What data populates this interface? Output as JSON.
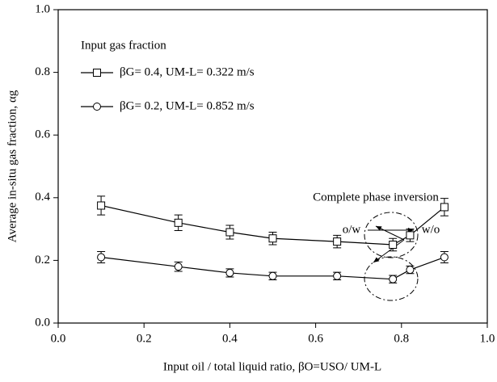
{
  "chart_data": {
    "type": "line",
    "xlabel": "Input oil / total liquid ratio, βO=USO/ UM-L",
    "ylabel": "Average in-situ gas fraction, αg",
    "legend_title": "Input gas fraction",
    "legend": "upper left",
    "annotations": [
      "Complete phase inversion",
      "o/w",
      "w/o"
    ],
    "x": [
      0.1,
      0.28,
      0.4,
      0.5,
      0.65,
      0.78,
      0.82,
      0.9
    ],
    "series": [
      {
        "name": "βG= 0.4, UM-L= 0.322 m/s",
        "color": "#000000",
        "marker": "square",
        "values": [
          0.375,
          0.32,
          0.29,
          0.27,
          0.26,
          0.25,
          0.28,
          0.37
        ],
        "errors": [
          0.03,
          0.025,
          0.022,
          0.02,
          0.02,
          0.02,
          0.02,
          0.028
        ]
      },
      {
        "name": "βG= 0.2, UM-L= 0.852 m/s",
        "color": "#000000",
        "marker": "circle",
        "values": [
          0.21,
          0.18,
          0.16,
          0.15,
          0.15,
          0.14,
          0.17,
          0.21
        ],
        "errors": [
          0.018,
          0.015,
          0.013,
          0.012,
          0.012,
          0.012,
          0.012,
          0.018
        ]
      }
    ],
    "xlim": [
      0,
      1
    ],
    "ylim": [
      0,
      1
    ],
    "xticks": [
      {
        "value": 0,
        "label": "0.0"
      },
      0.2,
      0.4,
      0.6,
      0.8,
      {
        "value": 1,
        "label": "1.0"
      }
    ],
    "yticks": [
      {
        "value": 0,
        "label": "0.0"
      },
      0.2,
      0.4,
      0.6,
      0.8,
      {
        "value": 1,
        "label": "1.0"
      }
    ],
    "grid": false
  }
}
